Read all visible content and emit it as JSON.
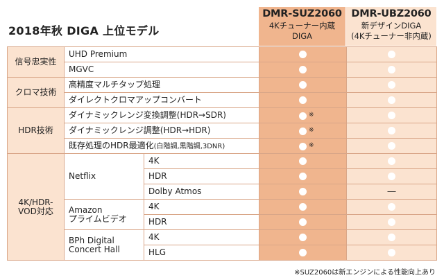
{
  "title": "2018年秋 DIGA 上位モデル",
  "columns": [
    {
      "model": "DMR-SUZ2060",
      "line1": "4Kチューナー内蔵",
      "line2": "DIGA"
    },
    {
      "model": "DMR-UBZ2060",
      "line1": "新デザインDIGA",
      "line2": "(4Kチューナー非内蔵)"
    }
  ],
  "categories": {
    "signal": "信号忠実性",
    "chroma": "クロマ技術",
    "hdr": "HDR技術",
    "vod_line1": "4K/HDR-",
    "vod_line2": "VOD対応"
  },
  "features": {
    "uhd_premium": "UHD Premium",
    "mgvc": "MGVC",
    "multitap": "高精度マルチタップ処理",
    "direct_chroma": "ダイレクトクロマアップコンバート",
    "dr_convert": "ダイナミックレンジ変換調整(HDR→SDR)",
    "dr_adjust": "ダイナミックレンジ調整(HDR→HDR)",
    "hdr_opt_main": "既存処理のHDR最適化",
    "hdr_opt_detail": "(白階調,黒階調,3DNR)"
  },
  "services": {
    "netflix": "Netflix",
    "amazon_line1": "Amazon",
    "amazon_line2": "プライムビデオ",
    "bph_line1": "BPh Digital",
    "bph_line2": "Concert Hall"
  },
  "formats": {
    "k4": "4K",
    "hdr": "HDR",
    "dolby": "Dolby Atmos",
    "hlg": "HLG"
  },
  "marks": {
    "asterisk": "※",
    "dash": "―"
  },
  "footnote": "※SUZ2060は新エンジンによる性能向上あり"
}
